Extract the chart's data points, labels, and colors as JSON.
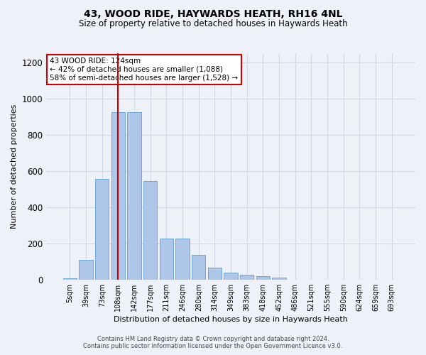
{
  "title": "43, WOOD RIDE, HAYWARDS HEATH, RH16 4NL",
  "subtitle": "Size of property relative to detached houses in Haywards Heath",
  "xlabel": "Distribution of detached houses by size in Haywards Heath",
  "ylabel": "Number of detached properties",
  "footer_line1": "Contains HM Land Registry data © Crown copyright and database right 2024.",
  "footer_line2": "Contains public sector information licensed under the Open Government Licence v3.0.",
  "annotation_line1": "43 WOOD RIDE: 124sqm",
  "annotation_line2": "← 42% of detached houses are smaller (1,088)",
  "annotation_line3": "58% of semi-detached houses are larger (1,528) →",
  "bar_values": [
    8,
    108,
    555,
    925,
    925,
    545,
    225,
    225,
    135,
    65,
    38,
    25,
    20,
    10,
    0,
    0,
    0,
    0,
    0,
    0,
    0
  ],
  "bar_labels": [
    "5sqm",
    "39sqm",
    "73sqm",
    "108sqm",
    "142sqm",
    "177sqm",
    "211sqm",
    "246sqm",
    "280sqm",
    "314sqm",
    "349sqm",
    "383sqm",
    "418sqm",
    "452sqm",
    "486sqm",
    "521sqm",
    "555sqm",
    "590sqm",
    "624sqm",
    "659sqm",
    "693sqm"
  ],
  "bar_color": "#aec6e8",
  "bar_edge_color": "#5a9fd4",
  "vline_x": 3.0,
  "vline_color": "#cc0000",
  "ylim": [
    0,
    1250
  ],
  "yticks": [
    0,
    200,
    400,
    600,
    800,
    1000,
    1200
  ],
  "annotation_box_color": "#ffffff",
  "annotation_box_edge": "#cc0000",
  "grid_color": "#d0d8e8",
  "bg_color": "#eef2f8",
  "title_fontsize": 10,
  "subtitle_fontsize": 8.5,
  "ylabel_fontsize": 8,
  "xlabel_fontsize": 8,
  "footer_fontsize": 6,
  "annotation_fontsize": 7.5
}
